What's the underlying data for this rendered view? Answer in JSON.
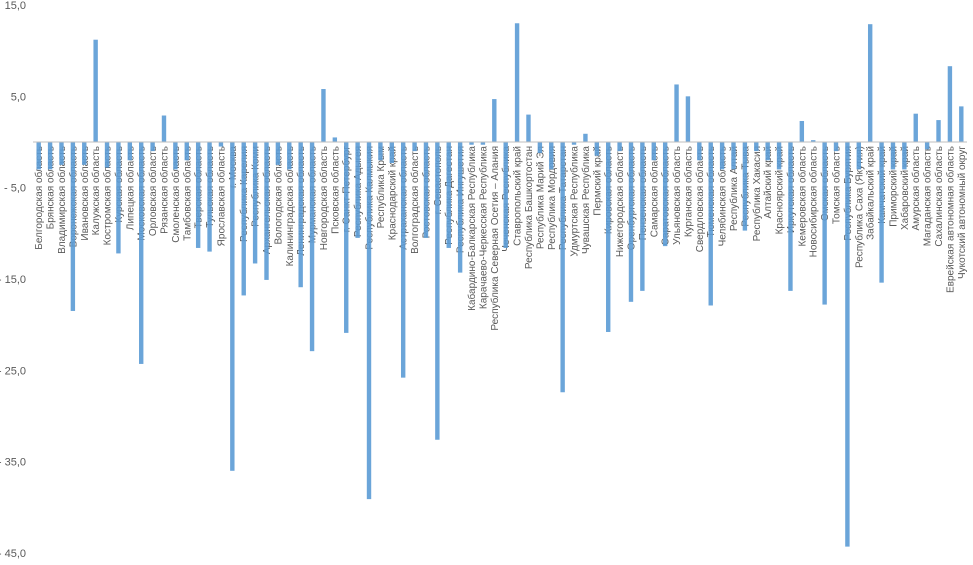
{
  "chart_data": {
    "type": "bar",
    "title": "",
    "xlabel": "",
    "ylabel": "",
    "ylim": [
      -45,
      15
    ],
    "y_ticks": [
      15,
      5,
      -5,
      -15,
      -25,
      -35,
      -45
    ],
    "y_tick_labels": [
      "15,0",
      "5,0",
      "- 5,0",
      "- 15,0",
      "- 25,0",
      "- 35,0",
      "- 45,0"
    ],
    "grid": false,
    "legend": "none",
    "bar_color": "#5b9bd5",
    "axis_color": "#bfbfbf",
    "categories": [
      "Белгородская область",
      "Брянская область",
      "Владимирская область",
      "Воронежская область",
      "Ивановская область",
      "Калужская область",
      "Костромская область",
      "Курская область",
      "Липецкая область",
      "Московская область",
      "Орловская область",
      "Рязанская область",
      "Смоленская область",
      "Тамбовская область",
      "Тверская область",
      "Тульская область",
      "Ярославская область",
      "г. Москва",
      "Республика Карелия",
      "Республика Коми",
      "Архангельская область",
      "Вологодская область",
      "Калининградская область",
      "Ленинградская область",
      "Мурманская область",
      "Новгородская область",
      "Псковская область",
      "г. Санкт-Петербург",
      "Республика Адыгея",
      "Республика Калмыкия",
      "Республика Крым",
      "Краснодарский край",
      "Астраханская область",
      "Волгоградская область",
      "Ростовская область",
      "г. Севастополь",
      "Республика Дагестан",
      "Республика Ингушетия",
      "Кабардино-Балкарская Республика",
      "Карачаево-Черкесская Республика",
      "Республика Северная Осетия – Алания",
      "Чеченская Республика",
      "Ставропольский край",
      "Республика Башкортостан",
      "Республика Марий Эл",
      "Республика Мордовия",
      "Республика Татарстан",
      "Удмуртская Республика",
      "Чувашская Республика",
      "Пермский край",
      "Кировская область",
      "Нижегородская область",
      "Оренбургская область",
      "Пензенская область",
      "Самарская область",
      "Саратовская область",
      "Ульяновская область",
      "Курганская область",
      "Свердловская область",
      "Тюменская область",
      "Челябинская область",
      "Республика Алтай",
      "Республика Тыва",
      "Республика Хакасия",
      "Алтайский край",
      "Красноярский край",
      "Иркутская область",
      "Кемеровская область",
      "Новосибирская область",
      "Омская область",
      "Томская область",
      "Республика Бурятия",
      "Республика Саха (Якутия)",
      "Забайкальский край",
      "Камчатский край",
      "Приморский край",
      "Хабаровский край",
      "Амурская область",
      "Магаданская область",
      "Сахалинская область",
      "Еврейская автономная область",
      "Чукотский автономный округ"
    ],
    "values": [
      -3.0,
      -3.0,
      -2.5,
      -18.5,
      -2.5,
      11.2,
      -2.8,
      -12.2,
      -2.0,
      -24.3,
      -1.0,
      2.9,
      -3.0,
      -2.0,
      -11.6,
      -12.0,
      -0.5,
      -36.0,
      -16.8,
      -13.3,
      -15.1,
      -2.5,
      -3.0,
      -15.9,
      -22.9,
      5.8,
      0.5,
      -20.9,
      -10.5,
      -39.1,
      -2.0,
      -2.3,
      -25.8,
      -1.0,
      -10.5,
      -32.6,
      -11.6,
      -14.3,
      -0.3,
      -0.3,
      4.7,
      -11.6,
      13.0,
      3.0,
      -1.2,
      -3.0,
      -27.4,
      -0.3,
      0.9,
      -1.5,
      -20.8,
      -1.0,
      -17.5,
      -16.3,
      -2.0,
      -11.4,
      6.3,
      5.0,
      -2.0,
      -17.9,
      -3.0,
      -3.0,
      -9.7,
      -1.0,
      -2.0,
      -3.0,
      -16.3,
      2.3,
      0.2,
      -17.8,
      -1.0,
      -44.3,
      -3.0,
      12.9,
      -15.4,
      -3.0,
      -3.0,
      3.1,
      -0.8,
      2.4,
      8.3,
      3.9
    ]
  }
}
